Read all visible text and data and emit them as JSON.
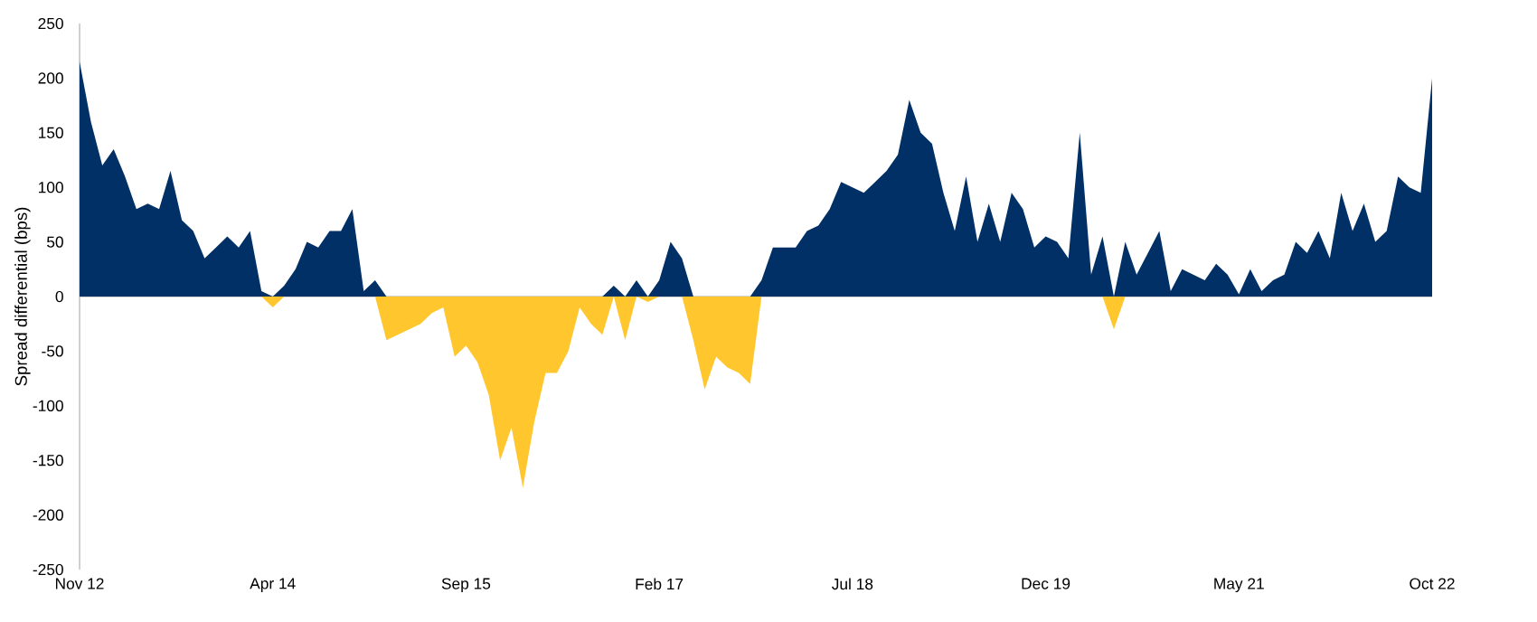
{
  "chart_data": {
    "type": "area",
    "ylabel": "Spread differential (bps)",
    "xlim": [
      "2012-11",
      "2022-10"
    ],
    "ylim": [
      -250,
      250
    ],
    "yticks": [
      -250,
      -200,
      -150,
      -100,
      -50,
      0,
      50,
      100,
      150,
      200,
      250
    ],
    "xticks": [
      {
        "value": "2012-11",
        "label": "Nov 12"
      },
      {
        "value": "2014-04",
        "label": "Apr 14"
      },
      {
        "value": "2015-09",
        "label": "Sep 15"
      },
      {
        "value": "2017-02",
        "label": "Feb 17"
      },
      {
        "value": "2018-07",
        "label": "Jul 18"
      },
      {
        "value": "2019-12",
        "label": "Dec 19"
      },
      {
        "value": "2021-05",
        "label": "May 21"
      },
      {
        "value": "2022-10",
        "label": "Oct 22"
      }
    ],
    "x": [
      "2012-11",
      "2012-12",
      "2013-01",
      "2013-02",
      "2013-03",
      "2013-04",
      "2013-05",
      "2013-06",
      "2013-07",
      "2013-08",
      "2013-09",
      "2013-10",
      "2013-11",
      "2013-12",
      "2014-01",
      "2014-02",
      "2014-03",
      "2014-04",
      "2014-05",
      "2014-06",
      "2014-07",
      "2014-08",
      "2014-09",
      "2014-10",
      "2014-11",
      "2014-12",
      "2015-01",
      "2015-02",
      "2015-03",
      "2015-04",
      "2015-05",
      "2015-06",
      "2015-07",
      "2015-08",
      "2015-09",
      "2015-10",
      "2015-11",
      "2015-12",
      "2016-01",
      "2016-02",
      "2016-03",
      "2016-04",
      "2016-05",
      "2016-06",
      "2016-07",
      "2016-08",
      "2016-09",
      "2016-10",
      "2016-11",
      "2016-12",
      "2017-01",
      "2017-02",
      "2017-03",
      "2017-04",
      "2017-05",
      "2017-06",
      "2017-07",
      "2017-08",
      "2017-09",
      "2017-10",
      "2017-11",
      "2017-12",
      "2018-01",
      "2018-02",
      "2018-03",
      "2018-04",
      "2018-05",
      "2018-06",
      "2018-07",
      "2018-08",
      "2018-09",
      "2018-10",
      "2018-11",
      "2018-12",
      "2019-01",
      "2019-02",
      "2019-03",
      "2019-04",
      "2019-05",
      "2019-06",
      "2019-07",
      "2019-08",
      "2019-09",
      "2019-10",
      "2019-11",
      "2019-12",
      "2020-01",
      "2020-02",
      "2020-03",
      "2020-04",
      "2020-05",
      "2020-06",
      "2020-07",
      "2020-08",
      "2020-09",
      "2020-10",
      "2020-11",
      "2020-12",
      "2021-01",
      "2021-02",
      "2021-03",
      "2021-04",
      "2021-05",
      "2021-06",
      "2021-07",
      "2021-08",
      "2021-09",
      "2021-10",
      "2021-11",
      "2021-12",
      "2022-01",
      "2022-02",
      "2022-03",
      "2022-04",
      "2022-05",
      "2022-06",
      "2022-07",
      "2022-08",
      "2022-09",
      "2022-10"
    ],
    "series": [
      {
        "color": "#003066",
        "values": [
          215,
          160,
          120,
          135,
          110,
          80,
          85,
          80,
          115,
          70,
          60,
          35,
          45,
          55,
          45,
          60,
          5,
          0,
          10,
          25,
          50,
          45,
          60,
          60,
          80,
          5,
          15,
          0,
          0,
          0,
          0,
          0,
          0,
          0,
          0,
          0,
          0,
          0,
          0,
          0,
          0,
          0,
          0,
          0,
          0,
          0,
          0,
          10,
          0,
          15,
          0,
          15,
          50,
          35,
          0,
          0,
          0,
          0,
          0,
          0,
          15,
          45,
          45,
          45,
          60,
          65,
          80,
          105,
          100,
          95,
          105,
          115,
          130,
          180,
          150,
          140,
          95,
          60,
          110,
          50,
          85,
          50,
          95,
          80,
          45,
          55,
          50,
          35,
          150,
          20,
          55,
          0,
          50,
          20,
          40,
          60,
          5,
          25,
          20,
          15,
          30,
          20,
          2,
          25,
          5,
          15,
          20,
          50,
          40,
          60,
          35,
          95,
          60,
          85,
          50,
          60,
          110,
          100,
          95,
          200
        ]
      },
      {
        "color": "#ffc62d",
        "values": [
          0,
          0,
          0,
          0,
          0,
          0,
          0,
          0,
          0,
          0,
          0,
          0,
          0,
          0,
          0,
          0,
          0,
          -10,
          0,
          0,
          0,
          0,
          0,
          0,
          0,
          0,
          0,
          -40,
          -35,
          -30,
          -25,
          -15,
          -10,
          -55,
          -45,
          -60,
          -90,
          -150,
          -120,
          -175,
          -115,
          -70,
          -70,
          -50,
          -10,
          -25,
          -35,
          0,
          -40,
          0,
          -5,
          0,
          0,
          0,
          -40,
          -85,
          -55,
          -65,
          -70,
          -80,
          0,
          0,
          0,
          0,
          0,
          0,
          0,
          0,
          0,
          0,
          0,
          0,
          0,
          0,
          0,
          0,
          0,
          0,
          0,
          0,
          0,
          0,
          0,
          0,
          0,
          0,
          0,
          0,
          0,
          0,
          0,
          -30,
          0,
          0,
          0,
          0,
          0,
          0,
          0,
          0,
          0,
          0,
          0,
          0,
          0,
          0,
          0,
          0,
          0,
          0,
          0,
          0,
          0,
          0,
          0,
          0,
          0,
          0,
          0,
          0
        ]
      }
    ]
  }
}
